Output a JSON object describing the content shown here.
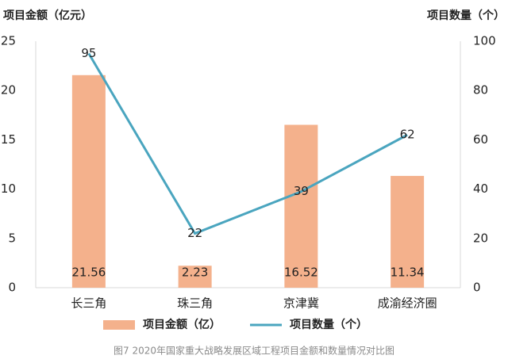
{
  "chart_data": {
    "type": "combo",
    "ylabel": "项目金额（亿元）",
    "y2label": "项目数量（个）",
    "caption": "图7  2020年国家重大战略发展区域工程项目金额和数量情况对比图",
    "categories": [
      "长三角",
      "珠三角",
      "京津冀",
      "成渝经济圈"
    ],
    "series": [
      {
        "name": "项目金额（亿）",
        "type": "bar",
        "color": "#f4b18c",
        "values": [
          21.56,
          2.23,
          16.52,
          11.34
        ]
      },
      {
        "name": "项目数量（个）",
        "type": "line",
        "color": "#4aa5bf",
        "axis": "y2",
        "values": [
          95,
          22,
          39,
          62
        ]
      }
    ],
    "ylim": [
      0,
      25
    ],
    "yticks": [
      0,
      5,
      10,
      15,
      20,
      25
    ],
    "y2lim": [
      0,
      100
    ],
    "y2ticks": [
      0,
      20,
      40,
      60,
      80,
      100
    ],
    "grid": false
  }
}
